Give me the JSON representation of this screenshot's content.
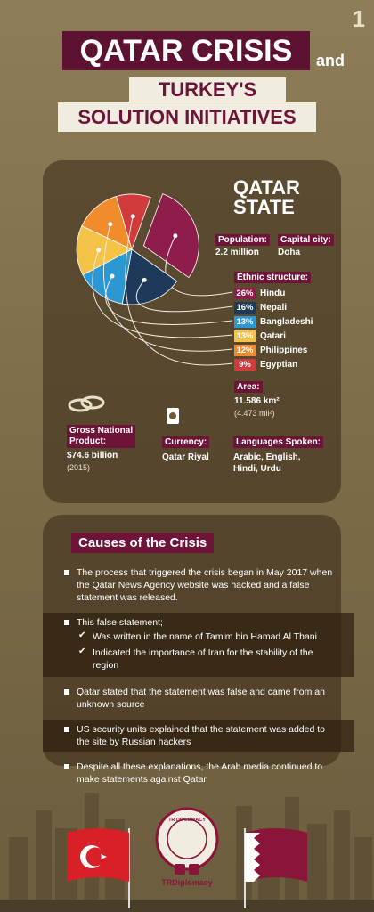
{
  "page_number": "1",
  "header": {
    "title": "QATAR CRISIS",
    "connector": "and",
    "subtitle_line1": "TURKEY'S",
    "subtitle_line2": "SOLUTION INITIATIVES"
  },
  "state": {
    "title_line1": "QATAR",
    "title_line2": "STATE",
    "population": {
      "label": "Population:",
      "value": "2.2 million"
    },
    "capital": {
      "label": "Capital city:",
      "value": "Doha"
    },
    "ethnic": {
      "label": "Ethnic structure:",
      "categories": [
        "Hindu",
        "Nepali",
        "Bangladeshi",
        "Qatari",
        "Philippines",
        "Egyptian"
      ],
      "values": [
        26,
        16,
        13,
        13,
        12,
        9
      ],
      "value_labels": [
        "26%",
        "16%",
        "13%",
        "13%",
        "12%",
        "9%"
      ],
      "colors": [
        "#8e1d4b",
        "#1e3a5a",
        "#2b98d4",
        "#f3c247",
        "#f08c2c",
        "#d23b3b"
      ]
    },
    "area": {
      "label": "Area:",
      "value": "11.586 km²",
      "note": "(4.473 mil²)"
    },
    "gnp": {
      "label_line1": "Gross National",
      "label_line2": "Product:",
      "value": "$74.6 billion",
      "note": "(2015)"
    },
    "currency": {
      "label": "Currency:",
      "value": "Qatar Riyal"
    },
    "languages": {
      "label": "Languages Spoken:",
      "value_line1": "Arabic, English,",
      "value_line2": "Hindi, Urdu"
    }
  },
  "causes": {
    "title": "Causes of the Crisis",
    "items": [
      "The process that triggered the crisis began in May 2017 when the Qatar News Agency website was hacked and a false statement was released.",
      "This false statement;",
      "Qatar stated that the statement was false and came from an unknown source",
      "US security units explained that the statement was added to the site by Russian hackers",
      "Despite all these explanations, the Arab media continued to make statements against Qatar"
    ],
    "subitems": [
      "Was written in the name of Tamim bin Hamad Al Thani",
      "Indicated the importance of Iran for the stability of the region"
    ]
  },
  "footer": {
    "logo_text": "TR DIPLOMACY",
    "handle": "TRDiplomacy"
  }
}
